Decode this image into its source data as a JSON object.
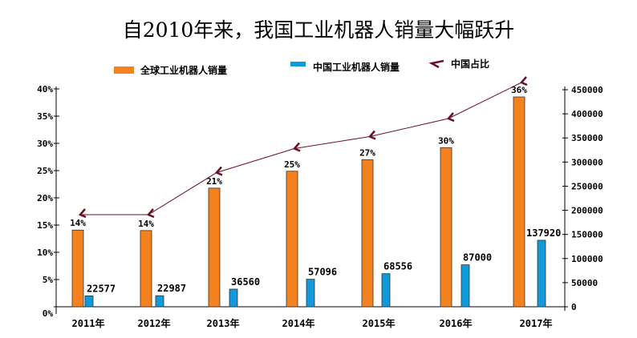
{
  "chart_data": {
    "type": "bar+line",
    "title": "自2010年来，我国工业机器人销量大幅跃升",
    "categories": [
      "2011年",
      "2012年",
      "2013年",
      "2014年",
      "2015年",
      "2016年",
      "2017年"
    ],
    "series": [
      {
        "name": "全球工业机器人销量",
        "type": "bar",
        "axis": "right",
        "color": "#f6821f",
        "values": [
          159000,
          158000,
          246000,
          281000,
          305000,
          330000,
          435000
        ]
      },
      {
        "name": "中国工业机器人销量",
        "type": "bar",
        "axis": "right",
        "color": "#0f9ad9",
        "values": [
          22577,
          22987,
          36560,
          57096,
          68556,
          87000,
          137920
        ],
        "labels": [
          "22577",
          "22987",
          "36560",
          "57096",
          "68556",
          "87000",
          "137920"
        ]
      },
      {
        "name": "中国占比",
        "type": "line",
        "axis": "left",
        "color": "#6b0f24",
        "values": [
          14,
          14,
          21,
          25,
          27,
          30,
          36
        ],
        "labels": [
          "14%",
          "14%",
          "21%",
          "25%",
          "27%",
          "30%",
          "36%"
        ]
      }
    ],
    "left_axis": {
      "ylim": [
        0,
        40
      ],
      "ticks": [
        "0%",
        "5%",
        "10%",
        "15%",
        "20%",
        "25%",
        "30%",
        "35%",
        "40%"
      ]
    },
    "right_axis": {
      "ylim": [
        0,
        450000
      ],
      "ticks": [
        "0",
        "50000",
        "100000",
        "150000",
        "200000",
        "250000",
        "300000",
        "350000",
        "400000",
        "450000"
      ]
    },
    "legend": "top",
    "grid": false
  }
}
